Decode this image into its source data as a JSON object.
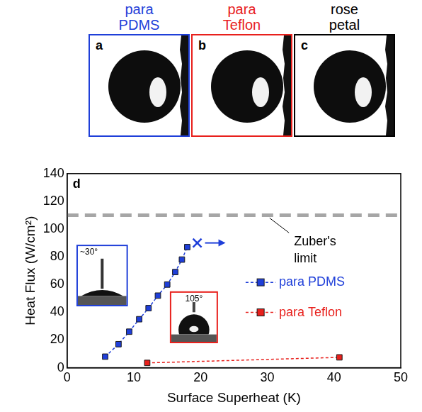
{
  "panels": [
    {
      "letter": "a",
      "title": "para PDMS",
      "color": "#1f3fd9"
    },
    {
      "letter": "b",
      "title": "para Teflon",
      "color": "#e8201c"
    },
    {
      "letter": "c",
      "title": "rose petal",
      "color": "#000000"
    }
  ],
  "chart_data": {
    "type": "scatter",
    "panel_label": "d",
    "xlabel": "Surface Superheat (K)",
    "ylabel": "Heat Flux (W/cm²)",
    "xlim": [
      0,
      50
    ],
    "xticks": [
      0,
      10,
      20,
      30,
      40,
      50
    ],
    "ylim": [
      0,
      140
    ],
    "yticks": [
      0,
      20,
      40,
      60,
      80,
      100,
      120,
      140
    ],
    "grid": false,
    "legend": "right",
    "series": [
      {
        "name": "para PDMS",
        "color": "#1f3fd9",
        "marker": "square",
        "line_style": "dashed",
        "x": [
          5.7,
          7.7,
          9.3,
          10.8,
          12.2,
          13.6,
          15.0,
          16.2,
          17.2,
          18.0
        ],
        "values": [
          8,
          17,
          26,
          35,
          43,
          52,
          60,
          69,
          78,
          87
        ],
        "critical_heat_flux": {
          "x": 19.5,
          "value": 90
        }
      },
      {
        "name": "para Teflon",
        "color": "#e8201c",
        "marker": "square",
        "line_style": "dashed",
        "x": [
          12.0,
          40.8
        ],
        "values": [
          3.5,
          7.5
        ]
      }
    ],
    "reference_line": {
      "text": "Zuber's limit",
      "value": 110,
      "color": "#a6a6a6",
      "line_style": "dashed"
    },
    "insets": [
      {
        "series": "para PDMS",
        "text": "~30°"
      },
      {
        "series": "para Teflon",
        "text": "105°"
      }
    ]
  }
}
